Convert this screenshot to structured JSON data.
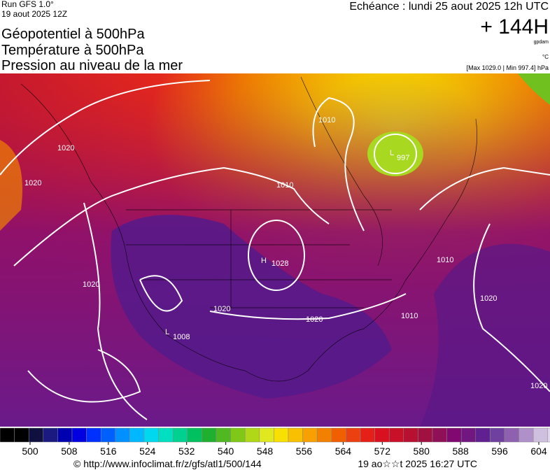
{
  "header": {
    "run": "Run GFS 1.0°",
    "date": "19 aout 2025 12Z",
    "lines": [
      "Géopotentiel à 500hPa",
      "Température à 500hPa",
      "Pression au niveau de la mer"
    ],
    "echeance": "Echéance : lundi 25 aout 2025 12h UTC",
    "lead": "+ 144H",
    "unit1": "gpdam",
    "unit2": "°C",
    "range": "[Max 1029.0 | Min 997.4] hPa"
  },
  "map": {
    "labels": [
      "L",
      "997",
      "H",
      "1028",
      "L",
      "1008",
      "1010",
      "1020",
      "1020",
      "1020",
      "1010",
      "1020",
      "1020",
      "1010",
      "1010",
      "1020",
      "1020"
    ]
  },
  "colorbar": {
    "ticks": [
      500,
      508,
      516,
      524,
      532,
      540,
      548,
      556,
      564,
      572,
      580,
      588,
      596,
      604
    ]
  },
  "footer": {
    "url": "© http://www.infoclimat.fr/z/gfs/atl1/500/144",
    "time": "19 ao☆☆t 2025 16:27 UTC"
  }
}
